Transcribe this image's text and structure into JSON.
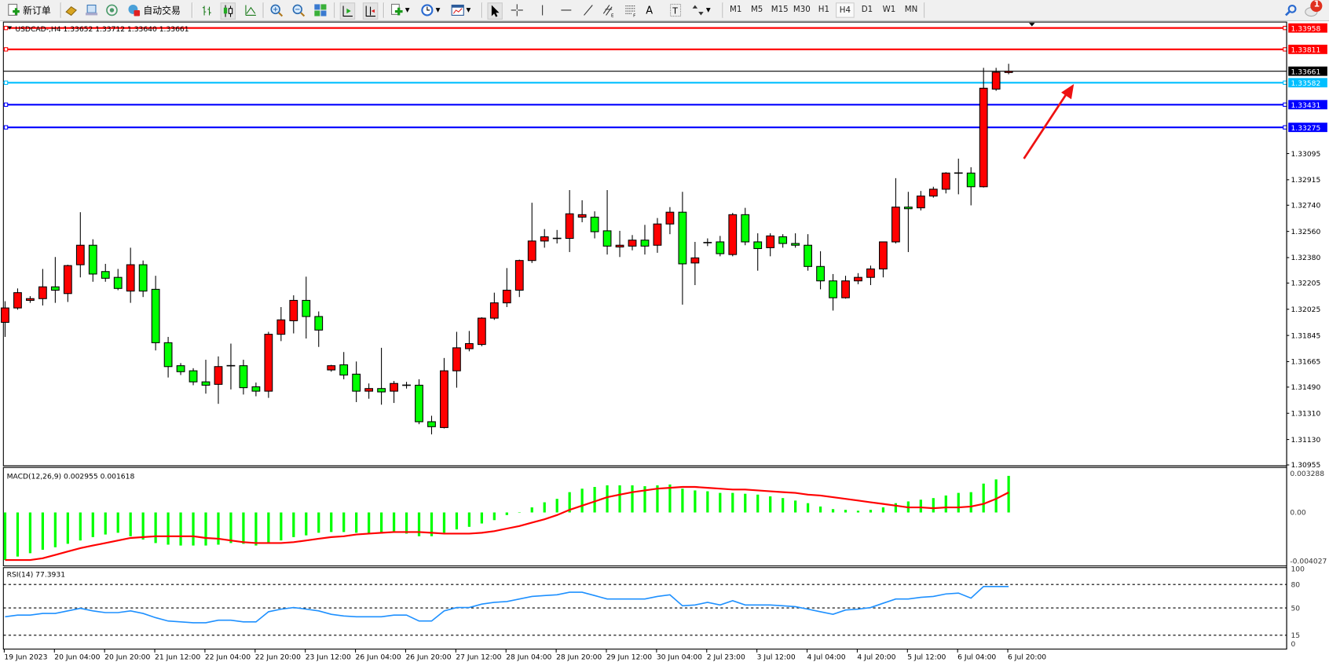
{
  "toolbar": {
    "new_order_label": "新订单",
    "auto_trading_label": "自动交易",
    "timeframes": [
      "M1",
      "M5",
      "M15",
      "M30",
      "H1",
      "H4",
      "D1",
      "W1",
      "MN"
    ],
    "active_timeframe": "H4",
    "notification_count": "1"
  },
  "chart": {
    "header": "USDCAD-,H4  1.33652 1.33712 1.33640 1.33661",
    "symbol": "USDCAD-",
    "timeframe": "H4",
    "ohlc_readout": {
      "open": 1.33652,
      "high": 1.33712,
      "low": 1.3364,
      "close": 1.33661
    },
    "bull_color": "#ff0000",
    "bear_color": "#00ff00",
    "price_axis_labels": [
      "1.33095",
      "1.32915",
      "1.32740",
      "1.32560",
      "1.32380",
      "1.32205",
      "1.32025",
      "1.31845",
      "1.31665",
      "1.31490",
      "1.31310",
      "1.31130",
      "1.30955"
    ],
    "horizontal_lines": [
      {
        "label": "1.33958",
        "color": "#ff0000"
      },
      {
        "label": "1.33811",
        "color": "#ff0000"
      },
      {
        "label": "1.33661",
        "color": "#000000",
        "current": true
      },
      {
        "label": "1.33582",
        "color": "#00bfff"
      },
      {
        "label": "1.33431",
        "color": "#0000ff"
      },
      {
        "label": "1.33275",
        "color": "#0000ff"
      }
    ],
    "arrow_color": "#ee1111",
    "time_labels": [
      "19 Jun 2023",
      "20 Jun 04:00",
      "20 Jun 20:00",
      "21 Jun 12:00",
      "22 Jun 04:00",
      "22 Jun 20:00",
      "23 Jun 12:00",
      "26 Jun 04:00",
      "26 Jun 20:00",
      "27 Jun 12:00",
      "28 Jun 04:00",
      "28 Jun 20:00",
      "29 Jun 12:00",
      "30 Jun 04:00",
      "2 Jul 23:00",
      "3 Jul 12:00",
      "4 Jul 04:00",
      "4 Jul 20:00",
      "5 Jul 12:00",
      "6 Jul 04:00",
      "6 Jul 20:00"
    ]
  },
  "chart_data": {
    "type": "candlestick",
    "ylim": [
      1.30955,
      1.34
    ],
    "candles": [
      [
        1.31935,
        1.3208,
        1.31835,
        1.32034
      ],
      [
        1.32034,
        1.32168,
        1.32022,
        1.32139
      ],
      [
        1.32086,
        1.32115,
        1.32069,
        1.32098
      ],
      [
        1.32098,
        1.32302,
        1.32051,
        1.32179
      ],
      [
        1.32179,
        1.32384,
        1.32069,
        1.32156
      ],
      [
        1.32133,
        1.32331,
        1.32075,
        1.32325
      ],
      [
        1.32331,
        1.32692,
        1.32244,
        1.32465
      ],
      [
        1.32465,
        1.32506,
        1.32214,
        1.32267
      ],
      [
        1.32284,
        1.32337,
        1.32214,
        1.32238
      ],
      [
        1.32244,
        1.32302,
        1.32156,
        1.32168
      ],
      [
        1.3215,
        1.32448,
        1.32069,
        1.32331
      ],
      [
        1.32331,
        1.3236,
        1.32109,
        1.3215
      ],
      [
        1.32162,
        1.32255,
        1.31742,
        1.31795
      ],
      [
        1.31795,
        1.31835,
        1.31556,
        1.31631
      ],
      [
        1.31637,
        1.31655,
        1.31573,
        1.31596
      ],
      [
        1.31602,
        1.3162,
        1.31503,
        1.31526
      ],
      [
        1.31526,
        1.31678,
        1.31445,
        1.31503
      ],
      [
        1.31509,
        1.31701,
        1.31375,
        1.31631
      ],
      [
        1.31637,
        1.31789,
        1.31474,
        1.31637
      ],
      [
        1.31637,
        1.31678,
        1.31439,
        1.31486
      ],
      [
        1.31492,
        1.31521,
        1.31427,
        1.31462
      ],
      [
        1.31462,
        1.3187,
        1.31416,
        1.31853
      ],
      [
        1.31853,
        1.3204,
        1.31806,
        1.31952
      ],
      [
        1.31946,
        1.32121,
        1.31859,
        1.32086
      ],
      [
        1.32086,
        1.32249,
        1.31824,
        1.31975
      ],
      [
        1.31975,
        1.3201,
        1.31766,
        1.31882
      ],
      [
        1.31608,
        1.31643,
        1.31596,
        1.31637
      ],
      [
        1.31643,
        1.31731,
        1.31544,
        1.31573
      ],
      [
        1.31579,
        1.31666,
        1.31387,
        1.31462
      ],
      [
        1.31462,
        1.31515,
        1.3141,
        1.3148
      ],
      [
        1.3148,
        1.3176,
        1.31369,
        1.31457
      ],
      [
        1.31462,
        1.31532,
        1.31381,
        1.31515
      ],
      [
        1.31503,
        1.31526,
        1.3148,
        1.31503
      ],
      [
        1.31503,
        1.31544,
        1.31235,
        1.31252
      ],
      [
        1.31252,
        1.31293,
        1.31165,
        1.31218
      ],
      [
        1.31212,
        1.3169,
        1.31206,
        1.31602
      ],
      [
        1.31602,
        1.3187,
        1.31486,
        1.3176
      ],
      [
        1.31754,
        1.31876,
        1.31736,
        1.31789
      ],
      [
        1.31783,
        1.3197,
        1.31771,
        1.31964
      ],
      [
        1.31964,
        1.32139,
        1.31952,
        1.32069
      ],
      [
        1.32069,
        1.32308,
        1.3204,
        1.32156
      ],
      [
        1.32156,
        1.32366,
        1.32109,
        1.3236
      ],
      [
        1.3236,
        1.32757,
        1.32343,
        1.32494
      ],
      [
        1.32494,
        1.32576,
        1.32448,
        1.32523
      ],
      [
        1.32512,
        1.3257,
        1.32477,
        1.32512
      ],
      [
        1.32512,
        1.32844,
        1.32418,
        1.32681
      ],
      [
        1.32658,
        1.32774,
        1.32623,
        1.32675
      ],
      [
        1.32658,
        1.32698,
        1.32512,
        1.32558
      ],
      [
        1.32564,
        1.32844,
        1.32401,
        1.32459
      ],
      [
        1.32453,
        1.32564,
        1.32384,
        1.32465
      ],
      [
        1.32459,
        1.32535,
        1.3243,
        1.325
      ],
      [
        1.325,
        1.32605,
        1.32401,
        1.32459
      ],
      [
        1.32465,
        1.32652,
        1.32413,
        1.32611
      ],
      [
        1.32611,
        1.32727,
        1.32541,
        1.32692
      ],
      [
        1.32692,
        1.32832,
        1.32057,
        1.32337
      ],
      [
        1.32343,
        1.32488,
        1.32191,
        1.32378
      ],
      [
        1.32483,
        1.32512,
        1.32459,
        1.32483
      ],
      [
        1.32488,
        1.32529,
        1.32389,
        1.32407
      ],
      [
        1.32401,
        1.32687,
        1.32389,
        1.32675
      ],
      [
        1.32675,
        1.32722,
        1.32465,
        1.32488
      ],
      [
        1.32488,
        1.32547,
        1.3229,
        1.32442
      ],
      [
        1.32448,
        1.32547,
        1.32389,
        1.32529
      ],
      [
        1.32523,
        1.32541,
        1.32448,
        1.32477
      ],
      [
        1.32477,
        1.32547,
        1.32448,
        1.32465
      ],
      [
        1.32465,
        1.32541,
        1.3229,
        1.32319
      ],
      [
        1.32319,
        1.32424,
        1.32162,
        1.3222
      ],
      [
        1.3222,
        1.32267,
        1.32016,
        1.32104
      ],
      [
        1.32104,
        1.32255,
        1.32098,
        1.3222
      ],
      [
        1.3222,
        1.32273,
        1.32197,
        1.32244
      ],
      [
        1.32244,
        1.32325,
        1.32191,
        1.32302
      ],
      [
        1.32302,
        1.32488,
        1.32244,
        1.32488
      ],
      [
        1.32488,
        1.32926,
        1.32477,
        1.32727
      ],
      [
        1.32727,
        1.32832,
        1.32418,
        1.32716
      ],
      [
        1.32722,
        1.32838,
        1.32704,
        1.32803
      ],
      [
        1.32803,
        1.32867,
        1.32792,
        1.3285
      ],
      [
        1.3285,
        1.32967,
        1.32821,
        1.32961
      ],
      [
        1.32961,
        1.3306,
        1.32815,
        1.32958
      ],
      [
        1.32961,
        1.33001,
        1.32739,
        1.32867
      ],
      [
        1.32867,
        1.33684,
        1.32862,
        1.33544
      ],
      [
        1.33538,
        1.33684,
        1.33526,
        1.33654
      ],
      [
        1.33652,
        1.33712,
        1.3364,
        1.33661
      ]
    ],
    "macd": {
      "label": "MACD(12,26,9) 0.002955 0.001618",
      "params": "12,26,9",
      "axis_labels": [
        "0.003288",
        "0.00",
        "-0.004027"
      ],
      "ylim": [
        -0.004027,
        0.003288
      ],
      "histogram_color": "#00ff00",
      "signal_color": "#ff0000",
      "histogram": [
        -0.00384,
        -0.00356,
        -0.00329,
        -0.00301,
        -0.00281,
        -0.00253,
        -0.00226,
        -0.00199,
        -0.00178,
        -0.00164,
        -0.00192,
        -0.00219,
        -0.00247,
        -0.0026,
        -0.00267,
        -0.00267,
        -0.00267,
        -0.0026,
        -0.00247,
        -0.00253,
        -0.00267,
        -0.00247,
        -0.00226,
        -0.00199,
        -0.00185,
        -0.00164,
        -0.00158,
        -0.00158,
        -0.00164,
        -0.00171,
        -0.00171,
        -0.00164,
        -0.00171,
        -0.00192,
        -0.00192,
        -0.00164,
        -0.00137,
        -0.00116,
        -0.00089,
        -0.00062,
        -0.00021,
        0.0,
        0.00041,
        0.00082,
        0.0011,
        0.00164,
        0.00192,
        0.00206,
        0.00219,
        0.00219,
        0.00219,
        0.00212,
        0.00219,
        0.00226,
        0.00192,
        0.00178,
        0.00171,
        0.00158,
        0.00158,
        0.00151,
        0.00144,
        0.0013,
        0.00116,
        0.00096,
        0.00075,
        0.00048,
        0.00027,
        0.00021,
        0.00014,
        0.00021,
        0.00041,
        0.00075,
        0.00089,
        0.00103,
        0.00116,
        0.00137,
        0.00158,
        0.00164,
        0.00233,
        0.00267,
        0.002955
      ],
      "signal": [
        -0.00384,
        -0.00384,
        -0.00384,
        -0.0037,
        -0.00343,
        -0.00315,
        -0.00288,
        -0.00267,
        -0.00247,
        -0.00226,
        -0.00206,
        -0.00199,
        -0.00192,
        -0.00192,
        -0.00192,
        -0.00192,
        -0.00206,
        -0.00212,
        -0.00226,
        -0.0024,
        -0.00247,
        -0.00247,
        -0.00247,
        -0.0024,
        -0.00226,
        -0.00212,
        -0.00199,
        -0.00192,
        -0.00178,
        -0.00171,
        -0.00164,
        -0.00158,
        -0.00158,
        -0.00158,
        -0.00164,
        -0.00171,
        -0.00171,
        -0.00171,
        -0.00164,
        -0.00151,
        -0.0013,
        -0.0011,
        -0.00082,
        -0.00055,
        -0.00021,
        0.00021,
        0.00055,
        0.00089,
        0.00123,
        0.00144,
        0.00164,
        0.00178,
        0.00192,
        0.00199,
        0.00206,
        0.00206,
        0.00199,
        0.00192,
        0.00185,
        0.00185,
        0.00178,
        0.00171,
        0.00164,
        0.00158,
        0.00144,
        0.00137,
        0.00123,
        0.0011,
        0.00096,
        0.00082,
        0.00069,
        0.00055,
        0.00041,
        0.00041,
        0.00034,
        0.00041,
        0.00041,
        0.00048,
        0.00069,
        0.0011,
        0.001618
      ]
    },
    "rsi": {
      "label": "RSI(14) 77.3931",
      "axis_labels": [
        "100",
        "80",
        "50",
        "15",
        "0"
      ],
      "levels": [
        80,
        50,
        15
      ],
      "ylim": [
        0,
        100
      ],
      "color": "#1e90ff",
      "values": [
        38.6,
        40.8,
        40.8,
        42.9,
        42.9,
        46.2,
        49.5,
        46.2,
        44.0,
        44.0,
        46.2,
        42.9,
        37.5,
        33.2,
        32.1,
        31.0,
        31.0,
        34.2,
        34.2,
        32.1,
        32.1,
        45.1,
        48.4,
        50.5,
        48.4,
        46.2,
        41.8,
        39.7,
        38.6,
        38.6,
        38.6,
        40.8,
        40.8,
        33.2,
        33.2,
        46.2,
        50.5,
        50.5,
        54.9,
        57.1,
        58.2,
        61.4,
        64.7,
        65.8,
        66.8,
        70.1,
        70.1,
        65.8,
        61.4,
        61.4,
        61.4,
        61.4,
        64.7,
        66.8,
        52.7,
        53.8,
        57.1,
        53.8,
        59.2,
        53.8,
        53.8,
        53.8,
        52.7,
        51.6,
        48.4,
        45.1,
        41.8,
        47.3,
        48.4,
        50.5,
        56.0,
        61.4,
        61.4,
        63.6,
        64.7,
        67.9,
        69.0,
        62.5,
        77.4,
        77.4,
        77.39
      ]
    }
  }
}
